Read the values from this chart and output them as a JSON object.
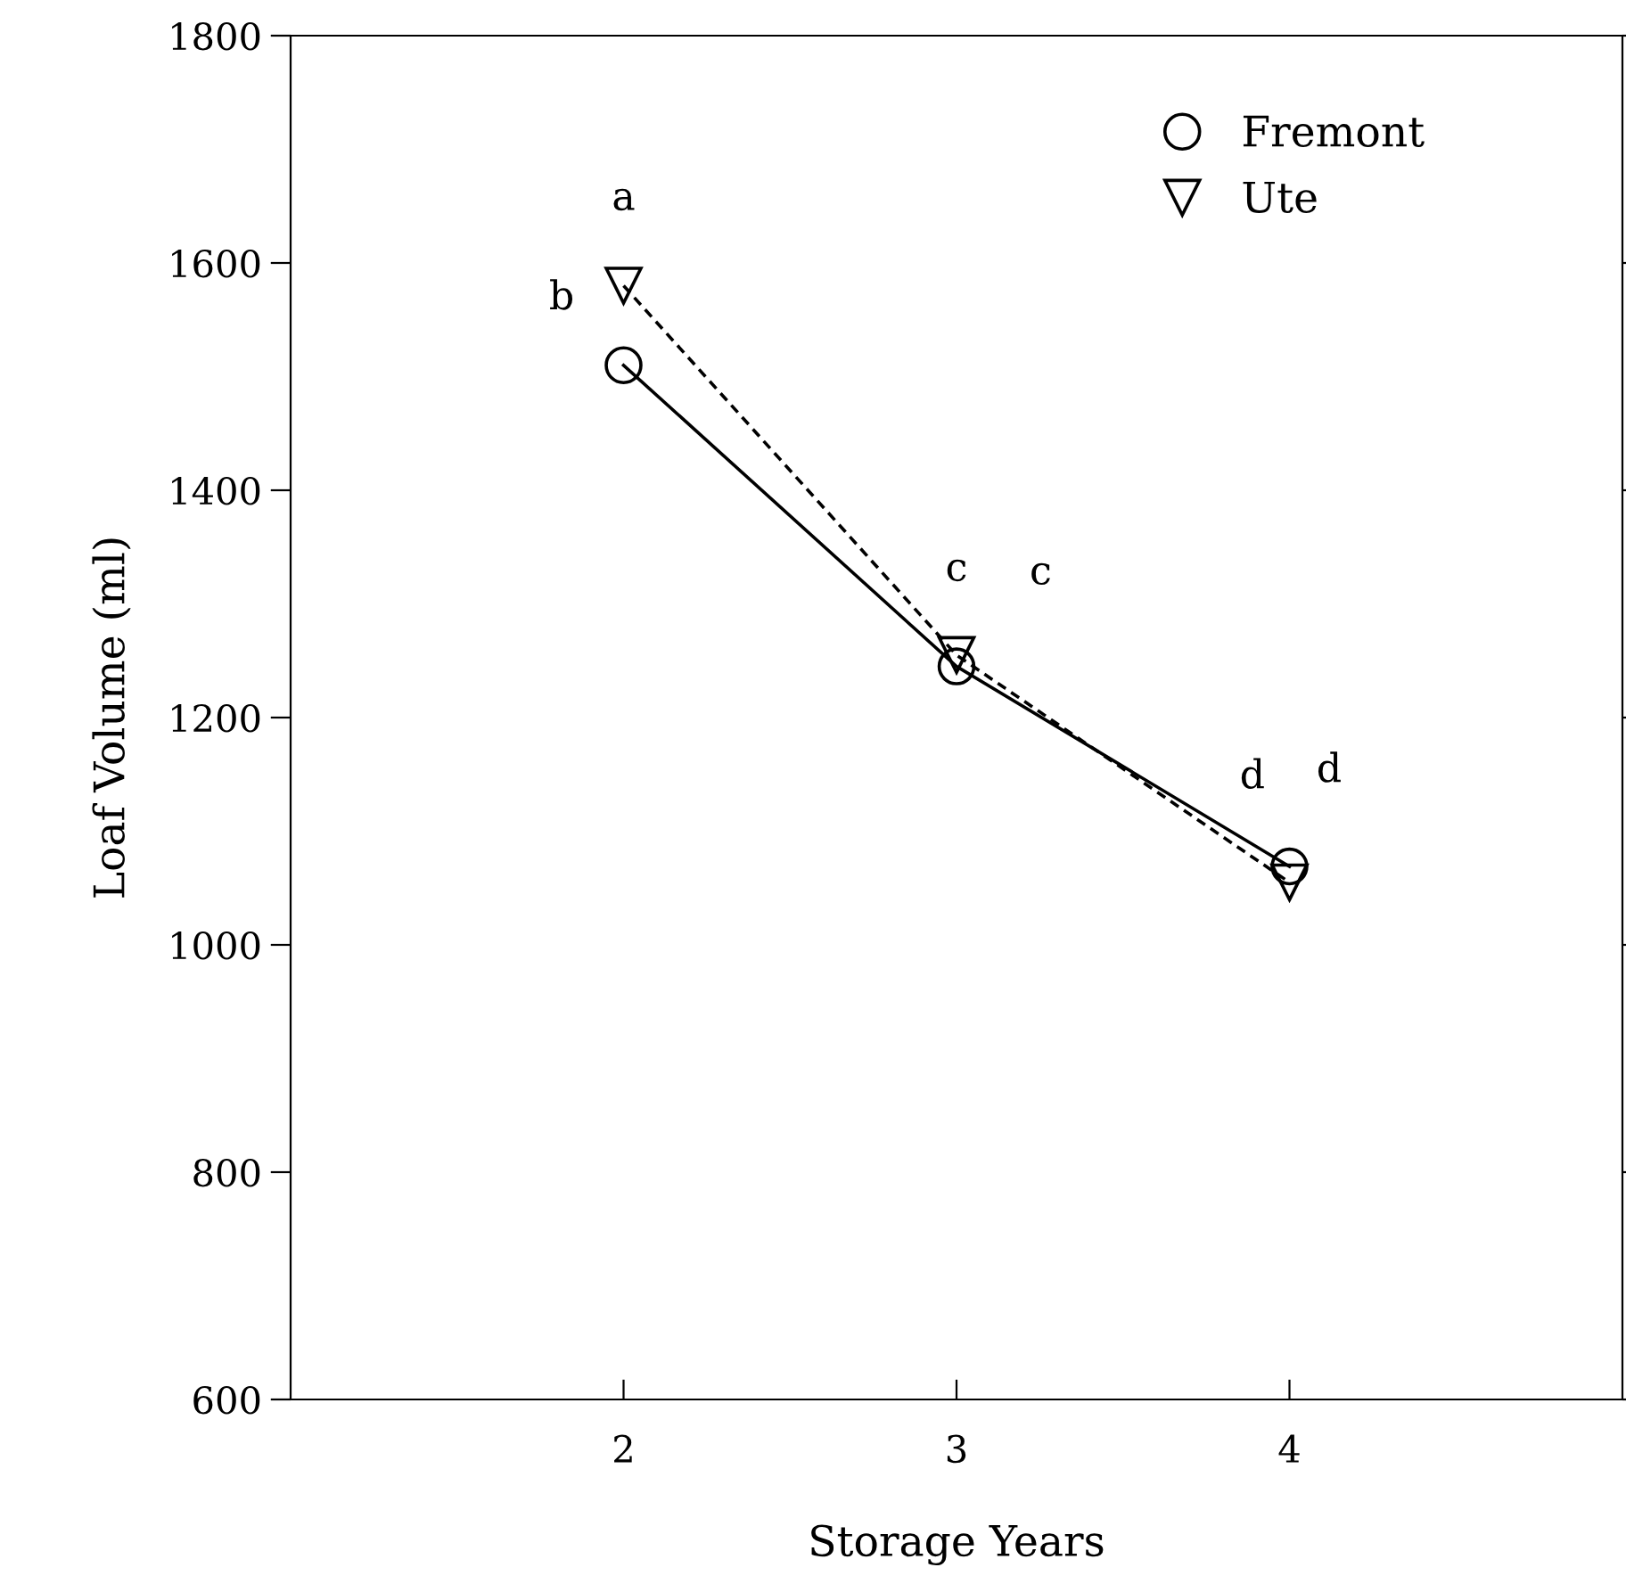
{
  "chart_data": {
    "type": "line",
    "xlabel": "Storage Years",
    "ylabel": "Loaf Volume (ml)",
    "x": [
      2,
      3,
      4
    ],
    "series": [
      {
        "name": "Fremont",
        "color": "#000000",
        "values": [
          1510,
          1245,
          1069
        ],
        "marker": "circle",
        "line_style": "solid"
      },
      {
        "name": "Ute",
        "color": "#000000",
        "values": [
          1580,
          1255,
          1055
        ],
        "marker": "triangle",
        "line_style": "dashed"
      }
    ],
    "xlim": [
      1,
      5
    ],
    "xticks": [
      2,
      3,
      4
    ],
    "ylim": [
      600,
      1800
    ],
    "yticks": [
      600,
      800,
      1000,
      1200,
      1400,
      1600,
      1800
    ],
    "grid": false,
    "legend": "top right",
    "annotations": [
      {
        "text": "a",
        "x": 2,
        "y": 1580
      },
      {
        "text": "b",
        "x": 2,
        "y": 1510
      },
      {
        "text": "c",
        "x": 3,
        "y": 1245
      },
      {
        "text": "c",
        "x": 3,
        "y": 1255
      },
      {
        "text": "d",
        "x": 4,
        "y": 1069
      },
      {
        "text": "d",
        "x": 4,
        "y": 1055
      }
    ]
  }
}
